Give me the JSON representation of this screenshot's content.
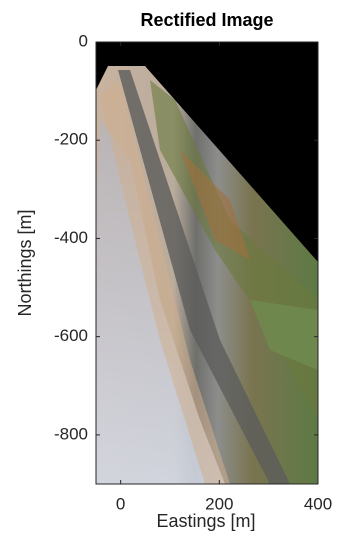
{
  "chart_data": {
    "type": "image",
    "title": "Rectified Image",
    "x_label": "Eastings [m]",
    "y_label": "Northings [m]",
    "xlim": [
      -50,
      400
    ],
    "ylim": [
      -900,
      0
    ],
    "xticks": [
      0,
      200,
      400
    ],
    "yticks": [
      0,
      -200,
      -400,
      -600,
      -800
    ]
  }
}
